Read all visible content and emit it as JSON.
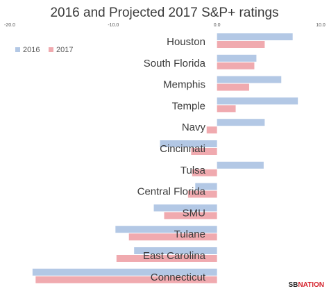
{
  "chart_data": {
    "type": "bar",
    "orientation": "horizontal",
    "title": "2016 and Projected 2017 S&P+ ratings",
    "xlabel": "",
    "ylabel": "",
    "xlim": [
      -20,
      10
    ],
    "x_ticks": [
      -20,
      -10,
      0,
      10
    ],
    "x_tick_labels": [
      "-20.0",
      "-10.0",
      "0.0",
      "10.0"
    ],
    "grid": false,
    "legend_position": "top-left",
    "categories": [
      "Houston",
      "South Florida",
      "Memphis",
      "Temple",
      "Navy",
      "Cincinnati",
      "Tulsa",
      "Central Florida",
      "SMU",
      "Tulane",
      "East Carolina",
      "Connecticut"
    ],
    "series": [
      {
        "name": "2016",
        "color": "#b3c8e5",
        "values": [
          7.3,
          3.8,
          6.2,
          7.8,
          4.6,
          -5.5,
          4.5,
          -2.1,
          -6.1,
          -9.8,
          -8.0,
          -17.8
        ]
      },
      {
        "name": "2017",
        "color": "#f0aaaf",
        "values": [
          4.6,
          3.6,
          3.1,
          1.8,
          -1.0,
          -2.5,
          -2.4,
          -2.8,
          -5.1,
          -8.5,
          -9.7,
          -17.5
        ]
      }
    ]
  },
  "branding": {
    "logo_sb": "SB",
    "logo_nation": "NATION"
  }
}
